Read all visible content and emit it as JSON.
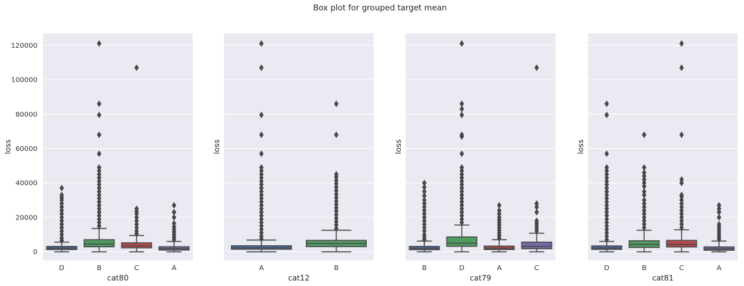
{
  "chart_data": {
    "type": "box",
    "title": "Box plot for grouped target mean",
    "shared_y": true,
    "ylabel": "loss",
    "ylim": [
      -5000,
      127000
    ],
    "yticks": [
      0,
      20000,
      40000,
      60000,
      80000,
      100000,
      120000
    ],
    "grid": true,
    "palette": [
      "#4c72b0",
      "#55a868",
      "#c44e52",
      "#8172b2"
    ],
    "panels": [
      {
        "xlabel": "cat80",
        "categories": [
          {
            "name": "D",
            "q1": 1300,
            "median": 2100,
            "q3": 3100,
            "whisker_low": 0,
            "whisker_high": 5600,
            "fliers": [
              6500,
              8000,
              10000,
              12000,
              14000,
              16000,
              18000,
              20000,
              22000,
              24000,
              26000,
              28000,
              30000,
              31500,
              33000,
              37000
            ]
          },
          {
            "name": "B",
            "q1": 2900,
            "median": 4500,
            "q3": 7000,
            "whisker_low": 0,
            "whisker_high": 13500,
            "fliers": [
              15000,
              17000,
              19000,
              21000,
              23000,
              25000,
              27000,
              29000,
              31000,
              33000,
              35000,
              37000,
              39000,
              41000,
              43000,
              45000,
              47000,
              49000,
              57000,
              68000,
              79500,
              86000,
              121000
            ]
          },
          {
            "name": "C",
            "q1": 2300,
            "median": 3500,
            "q3": 5200,
            "whisker_low": 0,
            "whisker_high": 9500,
            "fliers": [
              10500,
              12000,
              14000,
              16000,
              18000,
              20000,
              22000,
              23500,
              25000,
              107000
            ]
          },
          {
            "name": "A",
            "q1": 1000,
            "median": 1900,
            "q3": 2900,
            "whisker_low": 0,
            "whisker_high": 6000,
            "fliers": [
              7000,
              8500,
              10000,
              11500,
              13000,
              14500,
              16500,
              20000,
              23000,
              27000
            ]
          }
        ]
      },
      {
        "xlabel": "cat12",
        "categories": [
          {
            "name": "A",
            "q1": 1500,
            "median": 2300,
            "q3": 3500,
            "whisker_low": 0,
            "whisker_high": 6800,
            "fliers": [
              7500,
              9000,
              11000,
              13000,
              15000,
              17000,
              19000,
              21000,
              23000,
              25000,
              27000,
              29000,
              31000,
              33000,
              35000,
              37000,
              39000,
              41000,
              43000,
              45000,
              47000,
              49000,
              57000,
              68000,
              79500,
              107000,
              121000
            ]
          },
          {
            "name": "B",
            "q1": 3000,
            "median": 4800,
            "q3": 6600,
            "whisker_low": 0,
            "whisker_high": 12500,
            "fliers": [
              13500,
              15500,
              17500,
              19500,
              21500,
              23500,
              25500,
              27500,
              29500,
              31500,
              33500,
              35500,
              37500,
              39500,
              41500,
              43500,
              45000,
              68000,
              86000
            ]
          }
        ]
      },
      {
        "xlabel": "cat79",
        "categories": [
          {
            "name": "B",
            "q1": 1200,
            "median": 2000,
            "q3": 3100,
            "whisker_low": 0,
            "whisker_high": 6200,
            "fliers": [
              7000,
              8500,
              10000,
              12000,
              14000,
              16000,
              18000,
              20000,
              22000,
              24000,
              26000,
              28000,
              30000,
              32500,
              35000,
              37500,
              40000
            ]
          },
          {
            "name": "D",
            "q1": 3200,
            "median": 5000,
            "q3": 8600,
            "whisker_low": 0,
            "whisker_high": 15500,
            "fliers": [
              17000,
              19000,
              21000,
              23000,
              25000,
              27000,
              29000,
              31000,
              33000,
              35000,
              37000,
              39000,
              41000,
              43000,
              45000,
              47000,
              49000,
              57000,
              67000,
              68000,
              79500,
              83000,
              86000,
              121000
            ]
          },
          {
            "name": "A",
            "q1": 1300,
            "median": 2100,
            "q3": 3300,
            "whisker_low": 0,
            "whisker_high": 7000,
            "fliers": [
              8000,
              9500,
              11000,
              12500,
              14000,
              15500,
              17000,
              18500,
              20000,
              22000,
              24000,
              27000
            ]
          },
          {
            "name": "C",
            "q1": 1800,
            "median": 3200,
            "q3": 5600,
            "whisker_low": 0,
            "whisker_high": 10800,
            "fliers": [
              12000,
              13500,
              15000,
              16500,
              18000,
              23000,
              26000,
              28000,
              107000
            ]
          }
        ]
      },
      {
        "xlabel": "cat81",
        "categories": [
          {
            "name": "D",
            "q1": 1400,
            "median": 2200,
            "q3": 3400,
            "whisker_low": 0,
            "whisker_high": 6000,
            "fliers": [
              7000,
              9000,
              11000,
              13000,
              15000,
              17000,
              19000,
              21000,
              23000,
              25000,
              27000,
              29000,
              31000,
              33000,
              35000,
              37000,
              39000,
              41000,
              43000,
              45000,
              47000,
              49000,
              57000,
              79500,
              86000
            ]
          },
          {
            "name": "B",
            "q1": 2500,
            "median": 4300,
            "q3": 6400,
            "whisker_low": 0,
            "whisker_high": 12500,
            "fliers": [
              14000,
              16000,
              18000,
              20000,
              22000,
              24000,
              26000,
              28000,
              30000,
              33000,
              35000,
              38000,
              40000,
              42000,
              44000,
              46000,
              49000,
              68000
            ]
          },
          {
            "name": "C",
            "q1": 2800,
            "median": 4300,
            "q3": 6600,
            "whisker_low": 0,
            "whisker_high": 12800,
            "fliers": [
              14000,
              16000,
              18000,
              20000,
              22000,
              24000,
              26000,
              28000,
              30000,
              32000,
              33000,
              40000,
              42000,
              68000,
              107000,
              121000
            ]
          },
          {
            "name": "A",
            "q1": 900,
            "median": 1700,
            "q3": 2800,
            "whisker_low": 0,
            "whisker_high": 6200,
            "fliers": [
              7200,
              8600,
              10000,
              11500,
              13000,
              14500,
              16000,
              20000,
              23000,
              25000,
              27000
            ]
          }
        ]
      }
    ]
  }
}
